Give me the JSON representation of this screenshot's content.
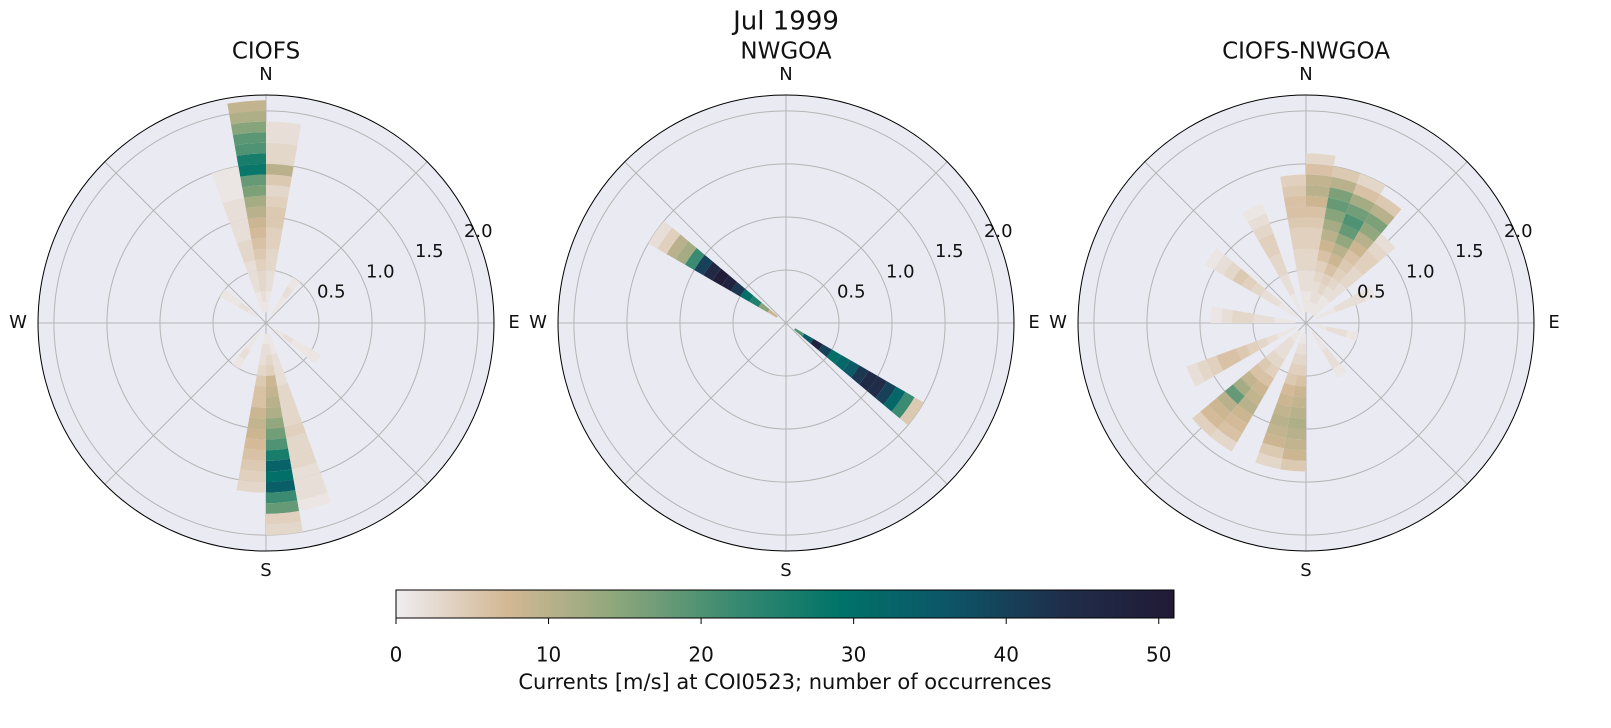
{
  "title": "Jul 1999",
  "chart_data": [
    {
      "type": "polar_hist",
      "title": "CIOFS",
      "direction_labels": [
        "N",
        "E",
        "S",
        "W"
      ],
      "rlim": [
        0,
        2.15
      ],
      "rticks": [
        0.5,
        {
          "value": 1,
          "label": "1.0"
        },
        1.5,
        {
          "value": 2,
          "label": "2.0"
        }
      ],
      "r_bins": [
        0,
        0.1,
        0.2,
        0.3,
        0.4,
        0.5,
        0.6,
        0.7,
        0.8,
        0.9,
        1.0,
        1.1,
        1.2,
        1.3,
        1.4,
        1.5,
        1.6,
        1.7,
        1.8,
        1.9,
        2.0,
        2.1
      ],
      "series": [
        {
          "theta": [
            350,
            360
          ],
          "values": [
            null,
            1,
            2,
            3,
            3,
            4,
            5,
            6,
            7,
            8,
            10,
            12,
            16,
            18,
            28,
            26,
            20,
            19,
            15,
            11,
            9
          ]
        },
        {
          "theta": [
            0,
            10
          ],
          "values": [
            null,
            1,
            1,
            2,
            2,
            3,
            3,
            4,
            4,
            5,
            5,
            4,
            3,
            5,
            10,
            3,
            3,
            2,
            2,
            null,
            null
          ]
        },
        {
          "theta": [
            340,
            350
          ],
          "values": [
            null,
            1,
            1,
            2,
            2,
            2,
            3,
            3,
            2,
            2,
            2,
            2,
            1,
            1,
            1,
            null,
            null,
            null,
            null,
            null,
            null
          ]
        },
        {
          "theta": [
            170,
            180
          ],
          "values": [
            null,
            1,
            2,
            3,
            4,
            8,
            9,
            10,
            11,
            14,
            17,
            20,
            26,
            33,
            30,
            34,
            22,
            18,
            4,
            3,
            null
          ]
        },
        {
          "theta": [
            180,
            190
          ],
          "values": [
            null,
            1,
            2,
            2,
            3,
            5,
            6,
            6,
            8,
            9,
            8,
            7,
            6,
            5,
            4,
            3,
            null,
            null,
            null,
            null,
            null
          ]
        },
        {
          "theta": [
            160,
            170
          ],
          "values": [
            null,
            1,
            1,
            2,
            2,
            2,
            3,
            3,
            3,
            3,
            4,
            3,
            3,
            3,
            2,
            2,
            2,
            1,
            null,
            null,
            null
          ]
        },
        {
          "theta": [
            30,
            40
          ],
          "values": [
            null,
            1,
            1,
            2,
            1,
            null,
            null,
            null,
            null,
            null,
            null,
            null,
            null,
            null,
            null,
            null,
            null,
            null,
            null,
            null,
            null
          ]
        },
        {
          "theta": [
            120,
            130
          ],
          "values": [
            null,
            1,
            2,
            1,
            1,
            1,
            null,
            null,
            null,
            null,
            null,
            null,
            null,
            null,
            null,
            null,
            null,
            null,
            null,
            null,
            null
          ]
        },
        {
          "theta": [
            210,
            220
          ],
          "values": [
            null,
            1,
            1,
            2,
            1,
            null,
            null,
            null,
            null,
            null,
            null,
            null,
            null,
            null,
            null,
            null,
            null,
            null,
            null,
            null,
            null
          ]
        },
        {
          "theta": [
            300,
            310
          ],
          "values": [
            null,
            1,
            2,
            1,
            1,
            null,
            null,
            null,
            null,
            null,
            null,
            null,
            null,
            null,
            null,
            null,
            null,
            null,
            null,
            null,
            null
          ]
        }
      ]
    },
    {
      "type": "polar_hist",
      "title": "NWGOA",
      "direction_labels": [
        "N",
        "E",
        "S",
        "W"
      ],
      "rlim": [
        0,
        2.15
      ],
      "rticks": [
        0.5,
        {
          "value": 1,
          "label": "1.0"
        },
        1.5,
        {
          "value": 2,
          "label": "2.0"
        }
      ],
      "r_bins": [
        0,
        0.1,
        0.2,
        0.3,
        0.4,
        0.5,
        0.6,
        0.7,
        0.8,
        0.9,
        1.0,
        1.1,
        1.2,
        1.3,
        1.4,
        1.5
      ],
      "series": [
        {
          "theta": [
            300,
            310
          ],
          "values": [
            null,
            8,
            15,
            25,
            30,
            42,
            48,
            50,
            46,
            40,
            22,
            12,
            10,
            4,
            2
          ]
        },
        {
          "theta": [
            120,
            130
          ],
          "values": [
            null,
            20,
            35,
            48,
            40,
            30,
            32,
            35,
            42,
            45,
            44,
            40,
            32,
            22,
            5
          ]
        }
      ]
    },
    {
      "type": "polar_hist",
      "title": "CIOFS-NWGOA",
      "direction_labels": [
        "N",
        "E",
        "S",
        "W"
      ],
      "rlim": [
        0,
        2.15
      ],
      "rticks": [
        0.5,
        {
          "value": 1,
          "label": "1.0"
        },
        1.5,
        {
          "value": 2,
          "label": "2.0"
        }
      ],
      "r_bins": [
        0,
        0.1,
        0.2,
        0.3,
        0.4,
        0.5,
        0.6,
        0.7,
        0.8,
        0.9,
        1.0,
        1.1,
        1.2,
        1.3,
        1.4,
        1.5,
        1.6
      ],
      "series": [
        {
          "theta": [
            0,
            10
          ],
          "values": [
            null,
            1,
            1,
            2,
            2,
            3,
            3,
            4,
            4,
            5,
            6,
            8,
            10,
            9,
            6,
            3
          ]
        },
        {
          "theta": [
            10,
            20
          ],
          "values": [
            null,
            1,
            2,
            2,
            3,
            4,
            6,
            8,
            10,
            12,
            15,
            18,
            16,
            10,
            5,
            null
          ]
        },
        {
          "theta": [
            20,
            30
          ],
          "values": [
            null,
            1,
            2,
            3,
            4,
            6,
            8,
            10,
            14,
            18,
            20,
            17,
            12,
            6,
            3,
            null
          ]
        },
        {
          "theta": [
            30,
            40
          ],
          "values": [
            null,
            1,
            1,
            2,
            3,
            4,
            5,
            6,
            8,
            10,
            14,
            16,
            10,
            5,
            null,
            null
          ]
        },
        {
          "theta": [
            40,
            50
          ],
          "values": [
            null,
            1,
            1,
            2,
            2,
            3,
            3,
            4,
            4,
            3,
            2,
            null,
            null,
            null,
            null,
            null
          ]
        },
        {
          "theta": [
            60,
            70
          ],
          "values": [
            null,
            1,
            1,
            2,
            2,
            2,
            1,
            null,
            null,
            null,
            null,
            null,
            null,
            null,
            null,
            null
          ]
        },
        {
          "theta": [
            100,
            110
          ],
          "values": [
            null,
            1,
            2,
            2,
            1,
            null,
            null,
            null,
            null,
            null,
            null,
            null,
            null,
            null,
            null,
            null
          ]
        },
        {
          "theta": [
            140,
            150
          ],
          "values": [
            null,
            1,
            1,
            2,
            2,
            1,
            null,
            null,
            null,
            null,
            null,
            null,
            null,
            null,
            null,
            null
          ]
        },
        {
          "theta": [
            180,
            190
          ],
          "values": [
            null,
            1,
            2,
            3,
            4,
            6,
            8,
            9,
            10,
            11,
            10,
            9,
            8,
            5,
            null,
            null
          ]
        },
        {
          "theta": [
            190,
            200
          ],
          "values": [
            null,
            1,
            2,
            3,
            4,
            5,
            7,
            8,
            9,
            10,
            9,
            8,
            5,
            3,
            null,
            null
          ]
        },
        {
          "theta": [
            210,
            220
          ],
          "values": [
            null,
            1,
            2,
            2,
            3,
            4,
            6,
            8,
            9,
            10,
            8,
            7,
            6,
            3,
            null,
            null
          ]
        },
        {
          "theta": [
            220,
            230
          ],
          "values": [
            null,
            1,
            2,
            2,
            3,
            5,
            6,
            9,
            12,
            18,
            10,
            8,
            7,
            4,
            null,
            null
          ]
        },
        {
          "theta": [
            240,
            250
          ],
          "values": [
            null,
            1,
            1,
            2,
            3,
            4,
            5,
            6,
            6,
            4,
            3,
            2,
            null,
            null,
            null,
            null
          ]
        },
        {
          "theta": [
            270,
            280
          ],
          "values": [
            null,
            1,
            1,
            2,
            2,
            3,
            3,
            2,
            1,
            null,
            null,
            null,
            null,
            null,
            null,
            null
          ]
        },
        {
          "theta": [
            300,
            310
          ],
          "values": [
            null,
            1,
            1,
            2,
            2,
            3,
            4,
            5,
            3,
            2,
            1,
            null,
            null,
            null,
            null,
            null
          ]
        },
        {
          "theta": [
            330,
            340
          ],
          "values": [
            null,
            1,
            1,
            2,
            2,
            3,
            3,
            4,
            4,
            3,
            2,
            1,
            null,
            null,
            null,
            null
          ]
        },
        {
          "theta": [
            350,
            360
          ],
          "values": [
            null,
            1,
            1,
            2,
            2,
            3,
            3,
            4,
            4,
            5,
            6,
            6,
            5,
            4,
            null,
            null
          ]
        }
      ]
    }
  ],
  "colorbar": {
    "label": "Currents [m/s] at COI0523; number of occurrences",
    "clim": [
      0,
      51
    ],
    "ticks": [
      0,
      10,
      20,
      30,
      40,
      50
    ],
    "colors": [
      "#efedf0",
      "#d3b894",
      "#8ca67b",
      "#3b8b71",
      "#007369",
      "#0d5467",
      "#1f2e4a",
      "#211a36"
    ]
  }
}
